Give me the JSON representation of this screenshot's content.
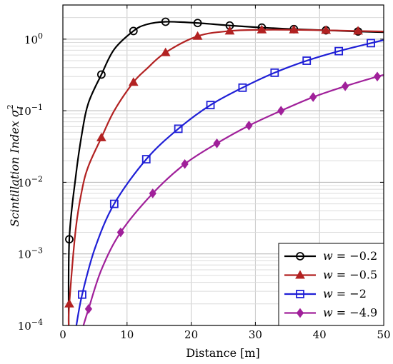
{
  "chart_data": {
    "type": "line",
    "xlabel": "Distance [m]",
    "ylabel": "Scintillation Index σ",
    "ylabel_sup": "2",
    "ylabel_sub": "I",
    "xlim": [
      0,
      50
    ],
    "ylim": [
      0.0001,
      3
    ],
    "yscale": "log",
    "grid": true,
    "legend_position": "bottom-right",
    "x_ticks": [
      0,
      10,
      20,
      30,
      40,
      50
    ],
    "y_ticks": [
      {
        "value": 0.0001,
        "mantissa": "10",
        "exponent": "−4"
      },
      {
        "value": 0.001,
        "mantissa": "10",
        "exponent": "−3"
      },
      {
        "value": 0.01,
        "mantissa": "10",
        "exponent": "−2"
      },
      {
        "value": 0.1,
        "mantissa": "10",
        "exponent": "−1"
      },
      {
        "value": 1,
        "mantissa": "10",
        "exponent": "0"
      }
    ],
    "series": [
      {
        "name": "w = −0.2",
        "legend_var": "w",
        "legend_value": "= −0.2",
        "color": "#000000",
        "marker": "circle",
        "x": [
          0.9,
          1,
          2,
          3,
          4,
          6,
          8,
          11,
          13,
          16,
          21,
          26,
          31,
          36,
          41,
          46,
          50
        ],
        "y": [
          0.0001,
          0.0016,
          0.012,
          0.05,
          0.13,
          0.32,
          0.72,
          1.3,
          1.6,
          1.75,
          1.68,
          1.55,
          1.45,
          1.38,
          1.33,
          1.28,
          1.25
        ],
        "marker_x": [
          1,
          6,
          11,
          16,
          21,
          26,
          31,
          36,
          41,
          46
        ]
      },
      {
        "name": "w = −0.5",
        "legend_var": "w",
        "legend_value": "= −0.5",
        "color": "#b22222",
        "marker": "triangle",
        "x": [
          0.9,
          1,
          2,
          3,
          4,
          6,
          8,
          11,
          13,
          16,
          21,
          26,
          31,
          36,
          41,
          46,
          50
        ],
        "y": [
          0.0001,
          0.0002,
          0.0022,
          0.008,
          0.017,
          0.042,
          0.1,
          0.25,
          0.38,
          0.65,
          1.1,
          1.3,
          1.35,
          1.35,
          1.33,
          1.3,
          1.28
        ],
        "marker_x": [
          1,
          6,
          11,
          16,
          21,
          26,
          31,
          36,
          41,
          46
        ]
      },
      {
        "name": "w = −2",
        "legend_var": "w",
        "legend_value": "= −2",
        "color": "#1f1fd6",
        "marker": "square",
        "x": [
          2.1,
          3,
          5,
          8,
          13,
          18,
          23,
          28,
          33,
          38,
          43,
          48,
          50
        ],
        "y": [
          0.0001,
          0.00027,
          0.0012,
          0.005,
          0.021,
          0.056,
          0.12,
          0.21,
          0.34,
          0.5,
          0.68,
          0.88,
          0.97
        ],
        "marker_x": [
          3,
          8,
          13,
          18,
          23,
          28,
          33,
          38,
          43,
          48
        ]
      },
      {
        "name": "w = −4.9",
        "legend_var": "w",
        "legend_value": "= −4.9",
        "color": "#a0209a",
        "marker": "diamond",
        "x": [
          3.2,
          4,
          6,
          9,
          14,
          19,
          24,
          29,
          34,
          39,
          44,
          49,
          50
        ],
        "y": [
          0.0001,
          0.00017,
          0.0006,
          0.002,
          0.007,
          0.018,
          0.035,
          0.062,
          0.1,
          0.155,
          0.22,
          0.3,
          0.315
        ],
        "marker_x": [
          4,
          9,
          14,
          19,
          24,
          29,
          34,
          39,
          44,
          49
        ]
      }
    ]
  }
}
